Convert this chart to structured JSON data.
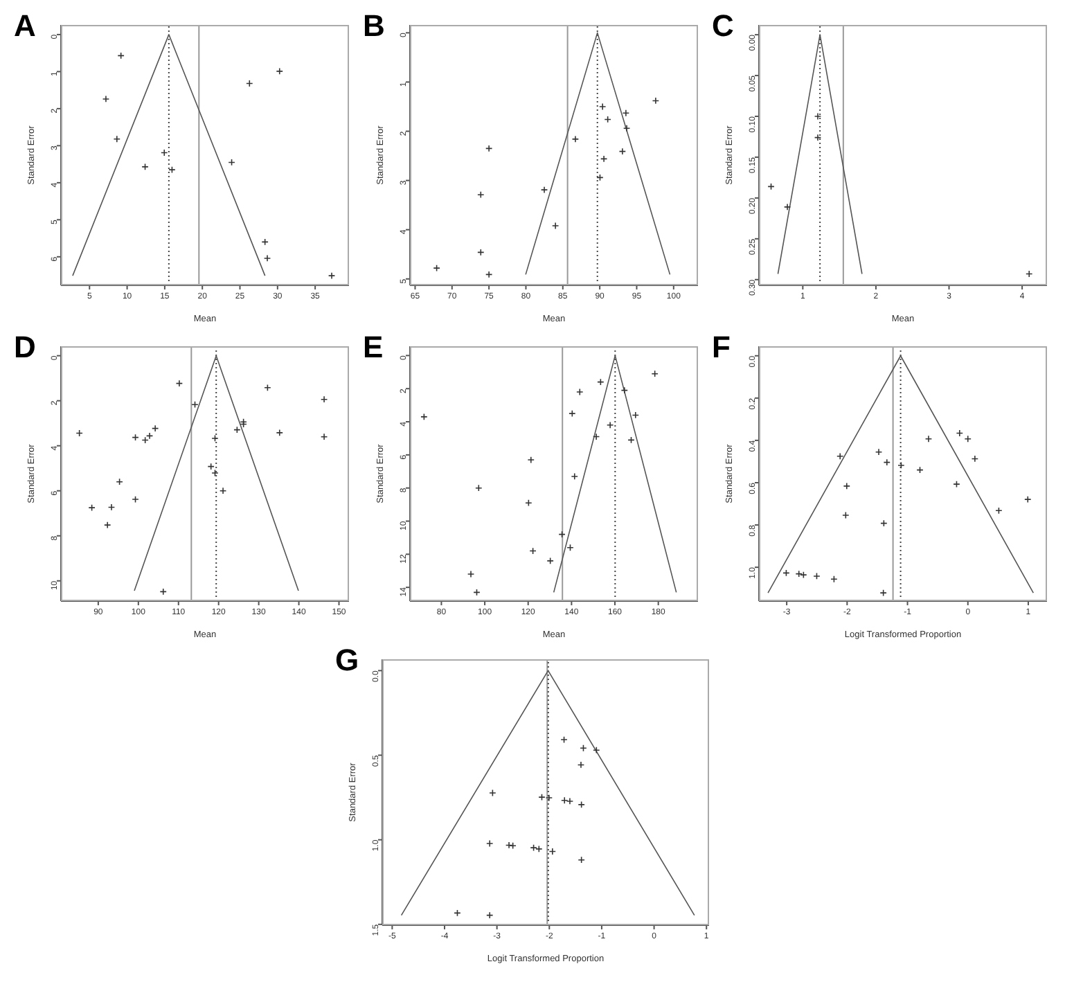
{
  "chart_data": [
    {
      "type": "scatter",
      "title": "A",
      "xlabel": "Mean",
      "ylabel": "Standard Error",
      "xlim": [
        1.2,
        39.5
      ],
      "ylim": [
        6.77,
        -0.26
      ],
      "xticks": [
        5,
        10,
        15,
        20,
        25,
        30,
        35
      ],
      "yticks": [
        0,
        1,
        2,
        3,
        4,
        5,
        6
      ],
      "series": [
        {
          "marker": "cross",
          "color": "#333333",
          "x": [
            9.18,
            30.27,
            26.27,
            7.18,
            8.64,
            14.94,
            12.39,
            15.97,
            23.9,
            28.33,
            28.64,
            37.2
          ],
          "values": [
            0.57,
            0.99,
            1.32,
            1.74,
            2.82,
            3.19,
            3.57,
            3.65,
            3.45,
            5.6,
            6.04,
            6.51
          ]
        },
        {
          "type": "line",
          "marker": "none",
          "color": "#555555",
          "x": [
            2.76,
            15.55,
            28.33
          ],
          "values": [
            6.51,
            0,
            6.51
          ]
        }
      ],
      "ref_lines": [
        {
          "axis": "x",
          "value": 19.55,
          "color": "#999999",
          "line_style": "solid"
        },
        {
          "axis": "x",
          "value": 15.55,
          "color": "#444444",
          "line_style": "dotted"
        }
      ]
    },
    {
      "type": "scatter",
      "title": "B",
      "xlabel": "Mean",
      "ylabel": "Standard Error",
      "xlim": [
        64.3,
        103.3
      ],
      "ylim": [
        5.13,
        -0.16
      ],
      "xticks": [
        65,
        70,
        75,
        80,
        85,
        90,
        95,
        100
      ],
      "yticks": [
        0,
        1,
        2,
        3,
        4,
        5
      ],
      "series": [
        {
          "marker": "cross",
          "color": "#333333",
          "x": [
            97.57,
            90.38,
            93.54,
            91.08,
            93.65,
            86.7,
            75.0,
            93.07,
            90.56,
            90.03,
            82.49,
            73.89,
            84.0,
            73.89,
            67.92,
            75.0
          ],
          "values": [
            1.38,
            1.5,
            1.63,
            1.76,
            1.94,
            2.16,
            2.35,
            2.41,
            2.56,
            2.94,
            3.19,
            3.29,
            3.92,
            4.46,
            4.78,
            4.91
          ]
        },
        {
          "type": "line",
          "marker": "none",
          "color": "#555555",
          "x": [
            79.97,
            89.68,
            99.5
          ],
          "values": [
            4.91,
            0,
            4.91
          ]
        }
      ],
      "ref_lines": [
        {
          "axis": "x",
          "value": 85.64,
          "color": "#999999",
          "line_style": "solid"
        },
        {
          "axis": "x",
          "value": 89.68,
          "color": "#444444",
          "line_style": "dotted"
        }
      ]
    },
    {
      "type": "scatter",
      "title": "C",
      "xlabel": "Mean",
      "ylabel": "Standard Error",
      "xlim": [
        0.4,
        4.34
      ],
      "ylim": [
        0.307,
        -0.012
      ],
      "xticks": [
        1,
        2,
        3,
        4
      ],
      "yticks": [
        {
          "value": 0,
          "label": "0.00"
        },
        {
          "value": 0.05,
          "label": "0.05"
        },
        {
          "value": 0.1,
          "label": "0.10"
        },
        {
          "value": 0.15,
          "label": "0.15"
        },
        {
          "value": 0.2,
          "label": "0.20"
        },
        {
          "value": 0.25,
          "label": "0.25"
        },
        {
          "value": 0.3,
          "label": "0.30"
        }
      ],
      "series": [
        {
          "marker": "cross",
          "color": "#333333",
          "x": [
            1.205,
            1.205,
            0.566,
            0.789,
            4.096
          ],
          "values": [
            0.1,
            0.126,
            0.186,
            0.211,
            0.293
          ]
        },
        {
          "type": "line",
          "marker": "none",
          "color": "#555555",
          "x": [
            0.66,
            1.235,
            1.81
          ],
          "values": [
            0.293,
            0,
            0.293
          ]
        }
      ],
      "ref_lines": [
        {
          "axis": "x",
          "value": 1.554,
          "color": "#999999",
          "line_style": "solid"
        },
        {
          "axis": "x",
          "value": 1.235,
          "color": "#444444",
          "line_style": "dotted"
        }
      ]
    },
    {
      "type": "scatter",
      "title": "D",
      "xlabel": "Mean",
      "ylabel": "Standard Error",
      "xlim": [
        80.7,
        152.5
      ],
      "ylim": [
        10.9,
        -0.42
      ],
      "xticks": [
        90,
        100,
        110,
        120,
        130,
        140,
        150
      ],
      "yticks": [
        0,
        2,
        4,
        6,
        8,
        10
      ],
      "series": [
        {
          "marker": "cross",
          "color": "#333333",
          "x": [
            85.3,
            99.26,
            101.7,
            102.8,
            104.2,
            110.2,
            114.1,
            119.1,
            118.1,
            119.1,
            121.1,
            124.6,
            126.2,
            126.2,
            132.2,
            135.2,
            146.3,
            146.3,
            95.3,
            88.4,
            93.3,
            99.26,
            92.3,
            106.2
          ],
          "values": [
            3.44,
            3.63,
            3.75,
            3.56,
            3.23,
            1.23,
            2.17,
            3.67,
            4.92,
            5.21,
            6.0,
            3.29,
            2.94,
            3.04,
            1.42,
            3.42,
            1.94,
            3.6,
            5.6,
            6.75,
            6.73,
            6.38,
            7.52,
            10.48
          ]
        },
        {
          "type": "line",
          "marker": "none",
          "color": "#555555",
          "x": [
            99.0,
            119.4,
            139.9
          ],
          "values": [
            10.44,
            0,
            10.44
          ]
        }
      ],
      "ref_lines": [
        {
          "axis": "x",
          "value": 113.2,
          "color": "#999999",
          "line_style": "solid"
        },
        {
          "axis": "x",
          "value": 119.4,
          "color": "#444444",
          "line_style": "dotted"
        }
      ]
    },
    {
      "type": "scatter",
      "title": "E",
      "xlabel": "Mean",
      "ylabel": "Standard Error",
      "xlim": [
        65.5,
        198.3
      ],
      "ylim": [
        14.83,
        -0.56
      ],
      "xticks": [
        80,
        100,
        120,
        140,
        160,
        180
      ],
      "yticks": [
        0,
        2,
        4,
        6,
        8,
        10,
        12,
        14
      ],
      "series": [
        {
          "marker": "cross",
          "color": "#333333",
          "x": [
            178.4,
            153.4,
            143.8,
            164.4,
            140.3,
            169.5,
            72.0,
            157.8,
            151.4,
            167.5,
            121.3,
            141.4,
            97.2,
            120.2,
            135.6,
            139.4,
            122.2,
            130.2,
            93.6,
            96.3
          ],
          "values": [
            1.1,
            1.6,
            2.2,
            2.1,
            3.5,
            3.6,
            3.7,
            4.2,
            4.9,
            5.1,
            6.3,
            7.3,
            8.0,
            8.9,
            10.8,
            11.6,
            11.8,
            12.4,
            13.2,
            14.3
          ]
        },
        {
          "type": "line",
          "marker": "none",
          "color": "#555555",
          "x": [
            131.8,
            160.1,
            188.3
          ],
          "values": [
            14.3,
            0,
            14.3
          ]
        }
      ],
      "ref_lines": [
        {
          "axis": "x",
          "value": 135.8,
          "color": "#999999",
          "line_style": "solid"
        },
        {
          "axis": "x",
          "value": 160.1,
          "color": "#444444",
          "line_style": "dotted"
        }
      ]
    },
    {
      "type": "scatter",
      "title": "F",
      "xlabel": "Logit Transformed Proportion",
      "ylabel": "Standard Error",
      "xlim": [
        -3.46,
        1.31
      ],
      "ylim": [
        1.16,
        -0.045
      ],
      "xticks": [
        -3,
        -2,
        -1,
        0,
        1
      ],
      "yticks": [
        {
          "value": 0,
          "label": "0.0"
        },
        {
          "value": 0.2,
          "label": "0.2"
        },
        {
          "value": 0.4,
          "label": "0.4"
        },
        {
          "value": 0.6,
          "label": "0.6"
        },
        {
          "value": 0.8,
          "label": "0.8"
        },
        {
          "value": 1,
          "label": "1.0"
        }
      ],
      "series": [
        {
          "marker": "cross",
          "color": "#333333",
          "x": [
            -0.137,
            -0.651,
            0.0,
            -2.116,
            -1.476,
            -1.341,
            -1.105,
            0.116,
            -0.794,
            -2.006,
            -0.187,
            0.992,
            0.512,
            -2.023,
            -1.392,
            -3.008,
            -2.798,
            -2.722,
            -2.503,
            -2.217,
            -1.4
          ],
          "values": [
            0.366,
            0.393,
            0.393,
            0.475,
            0.455,
            0.504,
            0.518,
            0.487,
            0.54,
            0.616,
            0.607,
            0.679,
            0.732,
            0.754,
            0.792,
            1.027,
            1.031,
            1.036,
            1.042,
            1.056,
            1.121
          ]
        },
        {
          "type": "line",
          "marker": "none",
          "color": "#555555",
          "x": [
            -3.31,
            -1.114,
            1.084
          ],
          "values": [
            1.121,
            0,
            1.121
          ]
        }
      ],
      "ref_lines": [
        {
          "axis": "x",
          "value": -1.24,
          "color": "#999999",
          "line_style": "solid"
        },
        {
          "axis": "x",
          "value": -1.114,
          "color": "#444444",
          "line_style": "dotted"
        }
      ]
    },
    {
      "type": "scatter",
      "title": "G",
      "xlabel": "Logit Transformed Proportion",
      "ylabel": "Standard Error",
      "xlim": [
        -5.19,
        1.05
      ],
      "ylim": [
        1.505,
        -0.067
      ],
      "xticks": [
        -5,
        -4,
        -3,
        -2,
        -1,
        0,
        1
      ],
      "yticks": [
        {
          "value": 0,
          "label": "0.0"
        },
        {
          "value": 0.5,
          "label": "0.5"
        },
        {
          "value": 1,
          "label": "1.0"
        },
        {
          "value": 1.5,
          "label": "1.5"
        }
      ],
      "series": [
        {
          "marker": "cross",
          "color": "#333333",
          "x": [
            -1.719,
            -1.35,
            -1.101,
            -1.396,
            -3.083,
            -2.143,
            -2.005,
            -1.71,
            -1.608,
            -1.387,
            -3.138,
            -2.77,
            -2.696,
            -2.3,
            -2.198,
            -1.94,
            -1.387,
            -3.756,
            -3.138
          ],
          "values": [
            0.408,
            0.458,
            0.47,
            0.557,
            0.723,
            0.748,
            0.752,
            0.767,
            0.772,
            0.792,
            1.022,
            1.032,
            1.035,
            1.047,
            1.054,
            1.069,
            1.119,
            1.433,
            1.446
          ]
        },
        {
          "type": "line",
          "marker": "none",
          "color": "#555555",
          "x": [
            -4.825,
            -2.023,
            0.77
          ],
          "values": [
            1.446,
            0,
            1.446
          ]
        }
      ],
      "ref_lines": [
        {
          "axis": "x",
          "value": -2.04,
          "color": "#999999",
          "line_style": "solid"
        },
        {
          "axis": "x",
          "value": -2.02,
          "color": "#444444",
          "line_style": "dotted"
        }
      ]
    }
  ]
}
